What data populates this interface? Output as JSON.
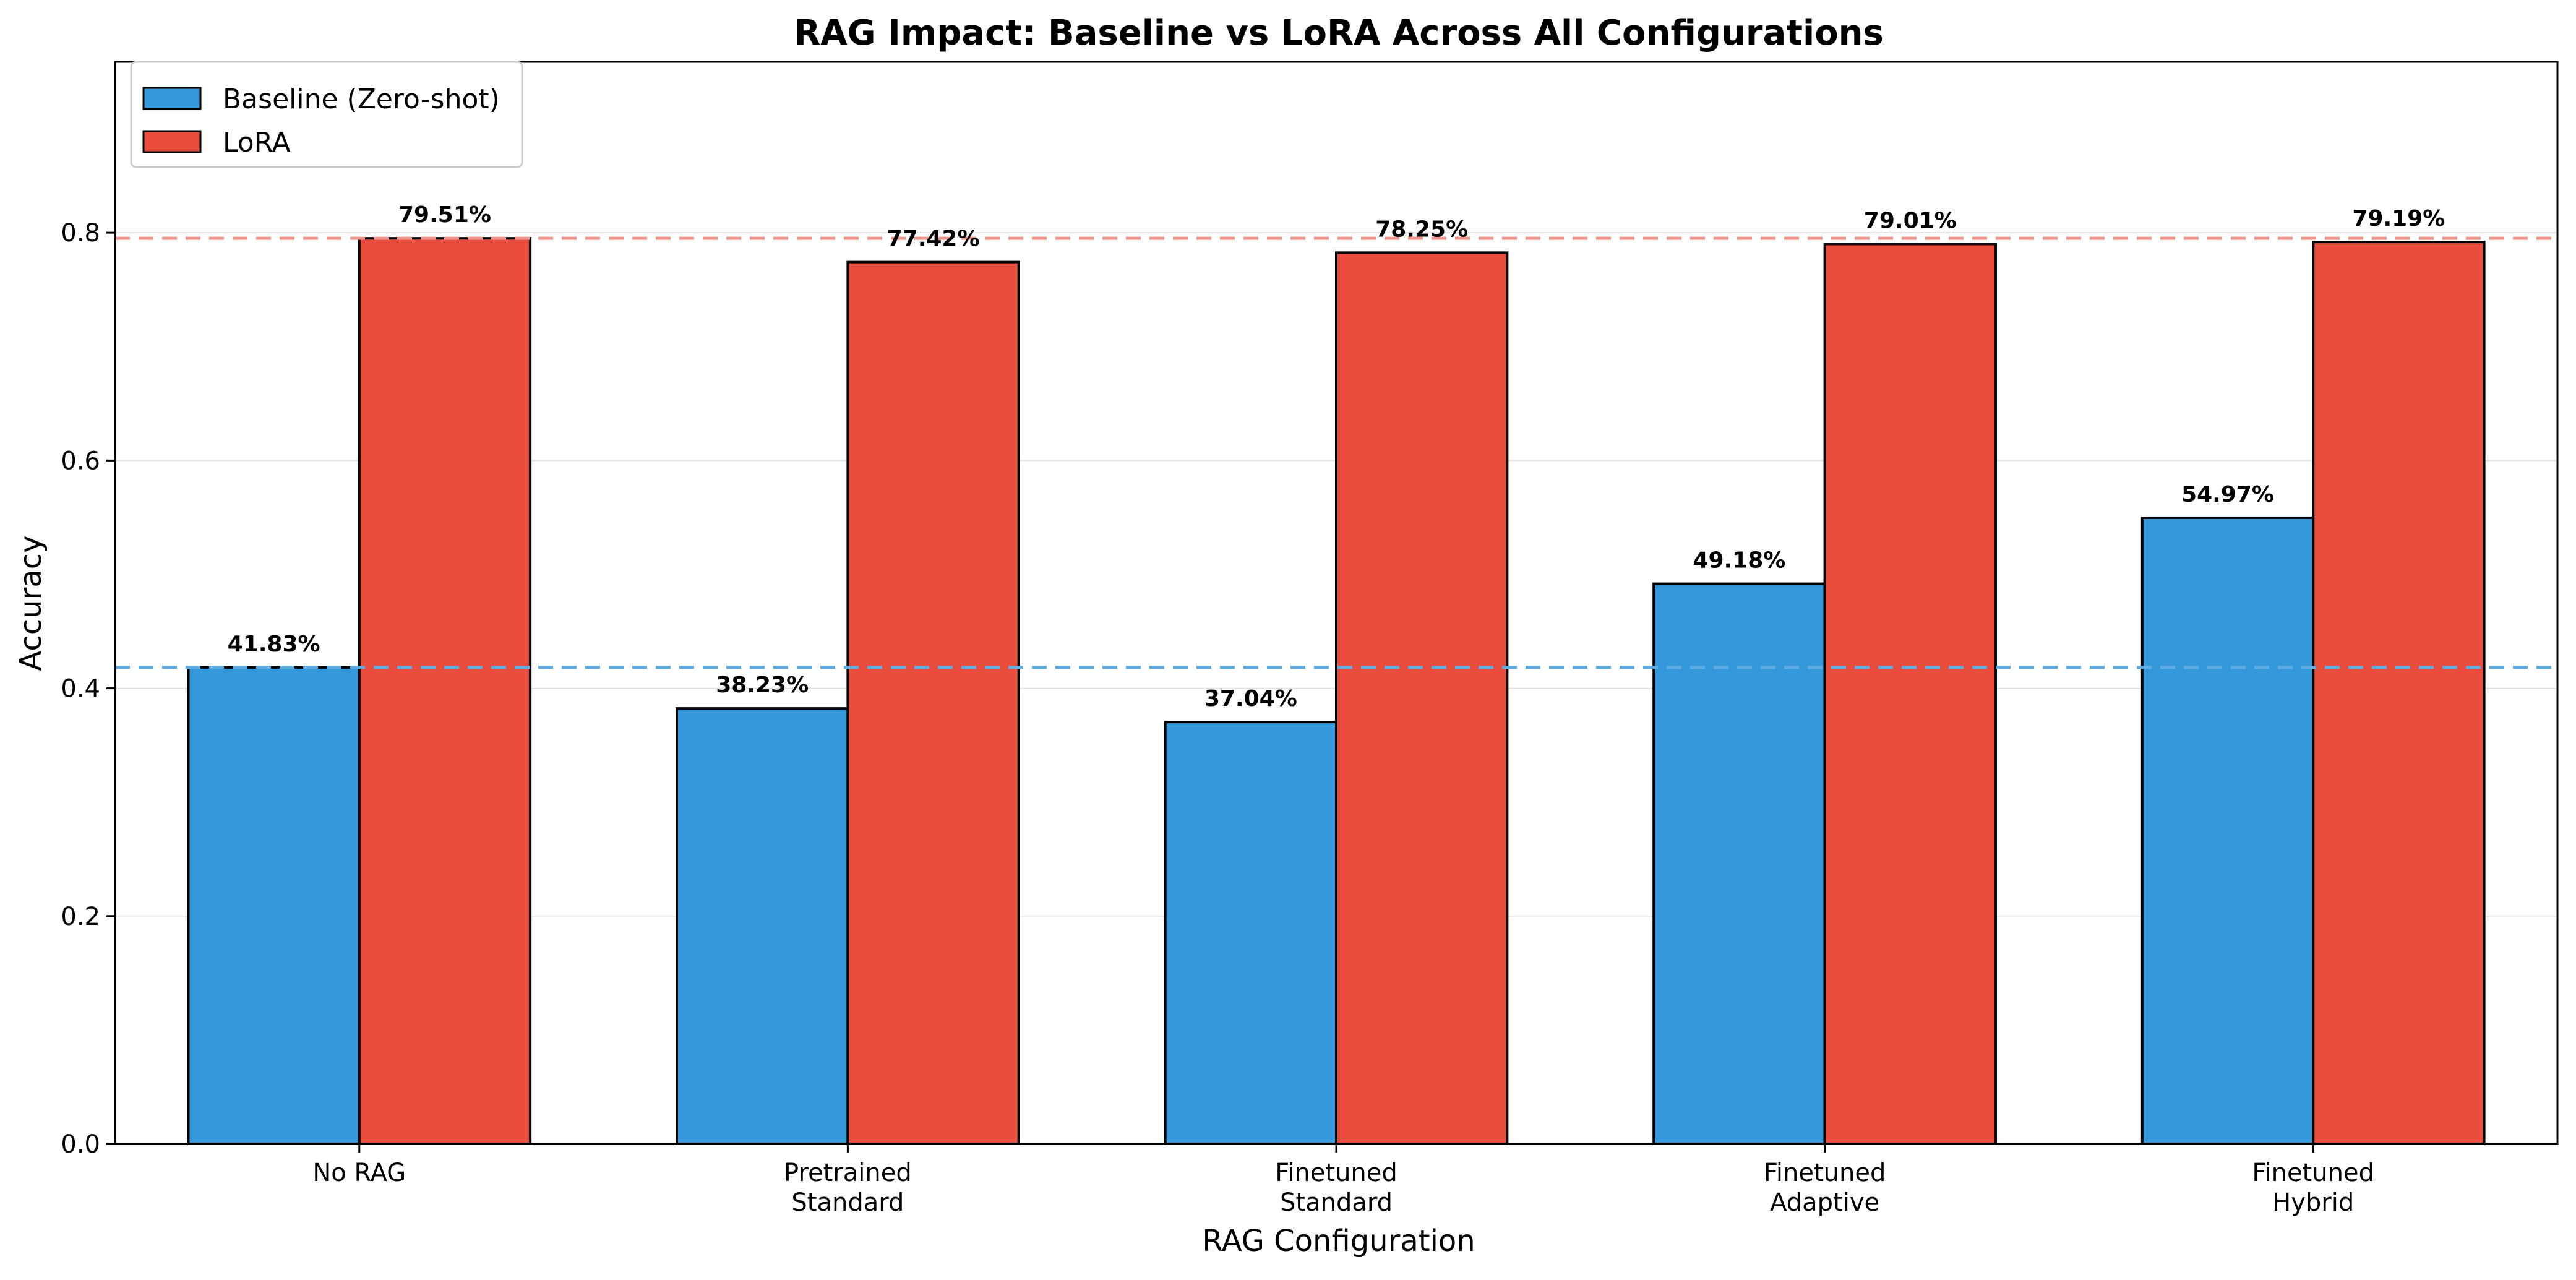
{
  "chart_data": {
    "type": "bar",
    "title": "RAG Impact: Baseline vs LoRA Across All Configurations",
    "xlabel": "RAG Configuration",
    "ylabel": "Accuracy",
    "ylim": [
      0,
      0.95
    ],
    "yticks": [
      0.0,
      0.2,
      0.4,
      0.6,
      0.8
    ],
    "ytick_labels": [
      "0.0",
      "0.2",
      "0.4",
      "0.6",
      "0.8"
    ],
    "grid": "horizontal",
    "legend_position": "top-left",
    "categories": [
      [
        "No RAG"
      ],
      [
        "Pretrained",
        "Standard"
      ],
      [
        "Finetuned",
        "Standard"
      ],
      [
        "Finetuned",
        "Adaptive"
      ],
      [
        "Finetuned",
        "Hybrid"
      ]
    ],
    "series": [
      {
        "name": "Baseline (Zero-shot)",
        "color": "#3498db",
        "values": [
          0.4183,
          0.3823,
          0.3704,
          0.4918,
          0.5497
        ],
        "labels": [
          "41.83%",
          "38.23%",
          "37.04%",
          "49.18%",
          "54.97%"
        ]
      },
      {
        "name": "LoRA",
        "color": "#e74c3c",
        "values": [
          0.7951,
          0.7742,
          0.7825,
          0.7901,
          0.7919
        ],
        "labels": [
          "79.51%",
          "77.42%",
          "78.25%",
          "79.01%",
          "79.19%"
        ]
      }
    ],
    "reference_lines": [
      {
        "series": "Baseline (Zero-shot)",
        "value": 0.4183,
        "color": "#5dade2",
        "style": "dashed"
      },
      {
        "series": "LoRA",
        "value": 0.7951,
        "color": "#f1948a",
        "style": "dashed"
      }
    ]
  }
}
